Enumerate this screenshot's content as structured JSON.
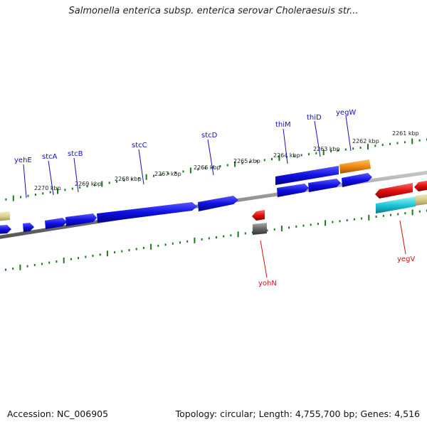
{
  "title": "Salmonella enterica subsp. enterica serovar Choleraesuis str...",
  "footer": {
    "accession": "Accession: NC_006905",
    "summary": "Topology: circular; Length: 4,755,700 bp; Genes: 4,516"
  },
  "scale_labels": [
    "2270 kbp",
    "2269 kbp",
    "2268 kbp",
    "2267 kbp",
    "2266 kbp",
    "2265 kbp",
    "2264 kbp",
    "2263 kbp",
    "2262 kbp",
    "2261 kbp"
  ],
  "genes_top": [
    "yehE",
    "stcA",
    "stcB",
    "stcC",
    "stcD",
    "thiM",
    "thiD",
    "yegW"
  ],
  "genes_bottom": [
    "yohN",
    "yegV"
  ],
  "colors": {
    "forward_gene": "#1010e0",
    "reverse_gene": "#e01010",
    "tick": "#1a7a1a",
    "backbone": "#888888",
    "orange_gene": "#f08a10",
    "cyan_gene": "#20c8d8",
    "khaki_gene": "#d8cf8a",
    "gray_gene": "#666666"
  }
}
